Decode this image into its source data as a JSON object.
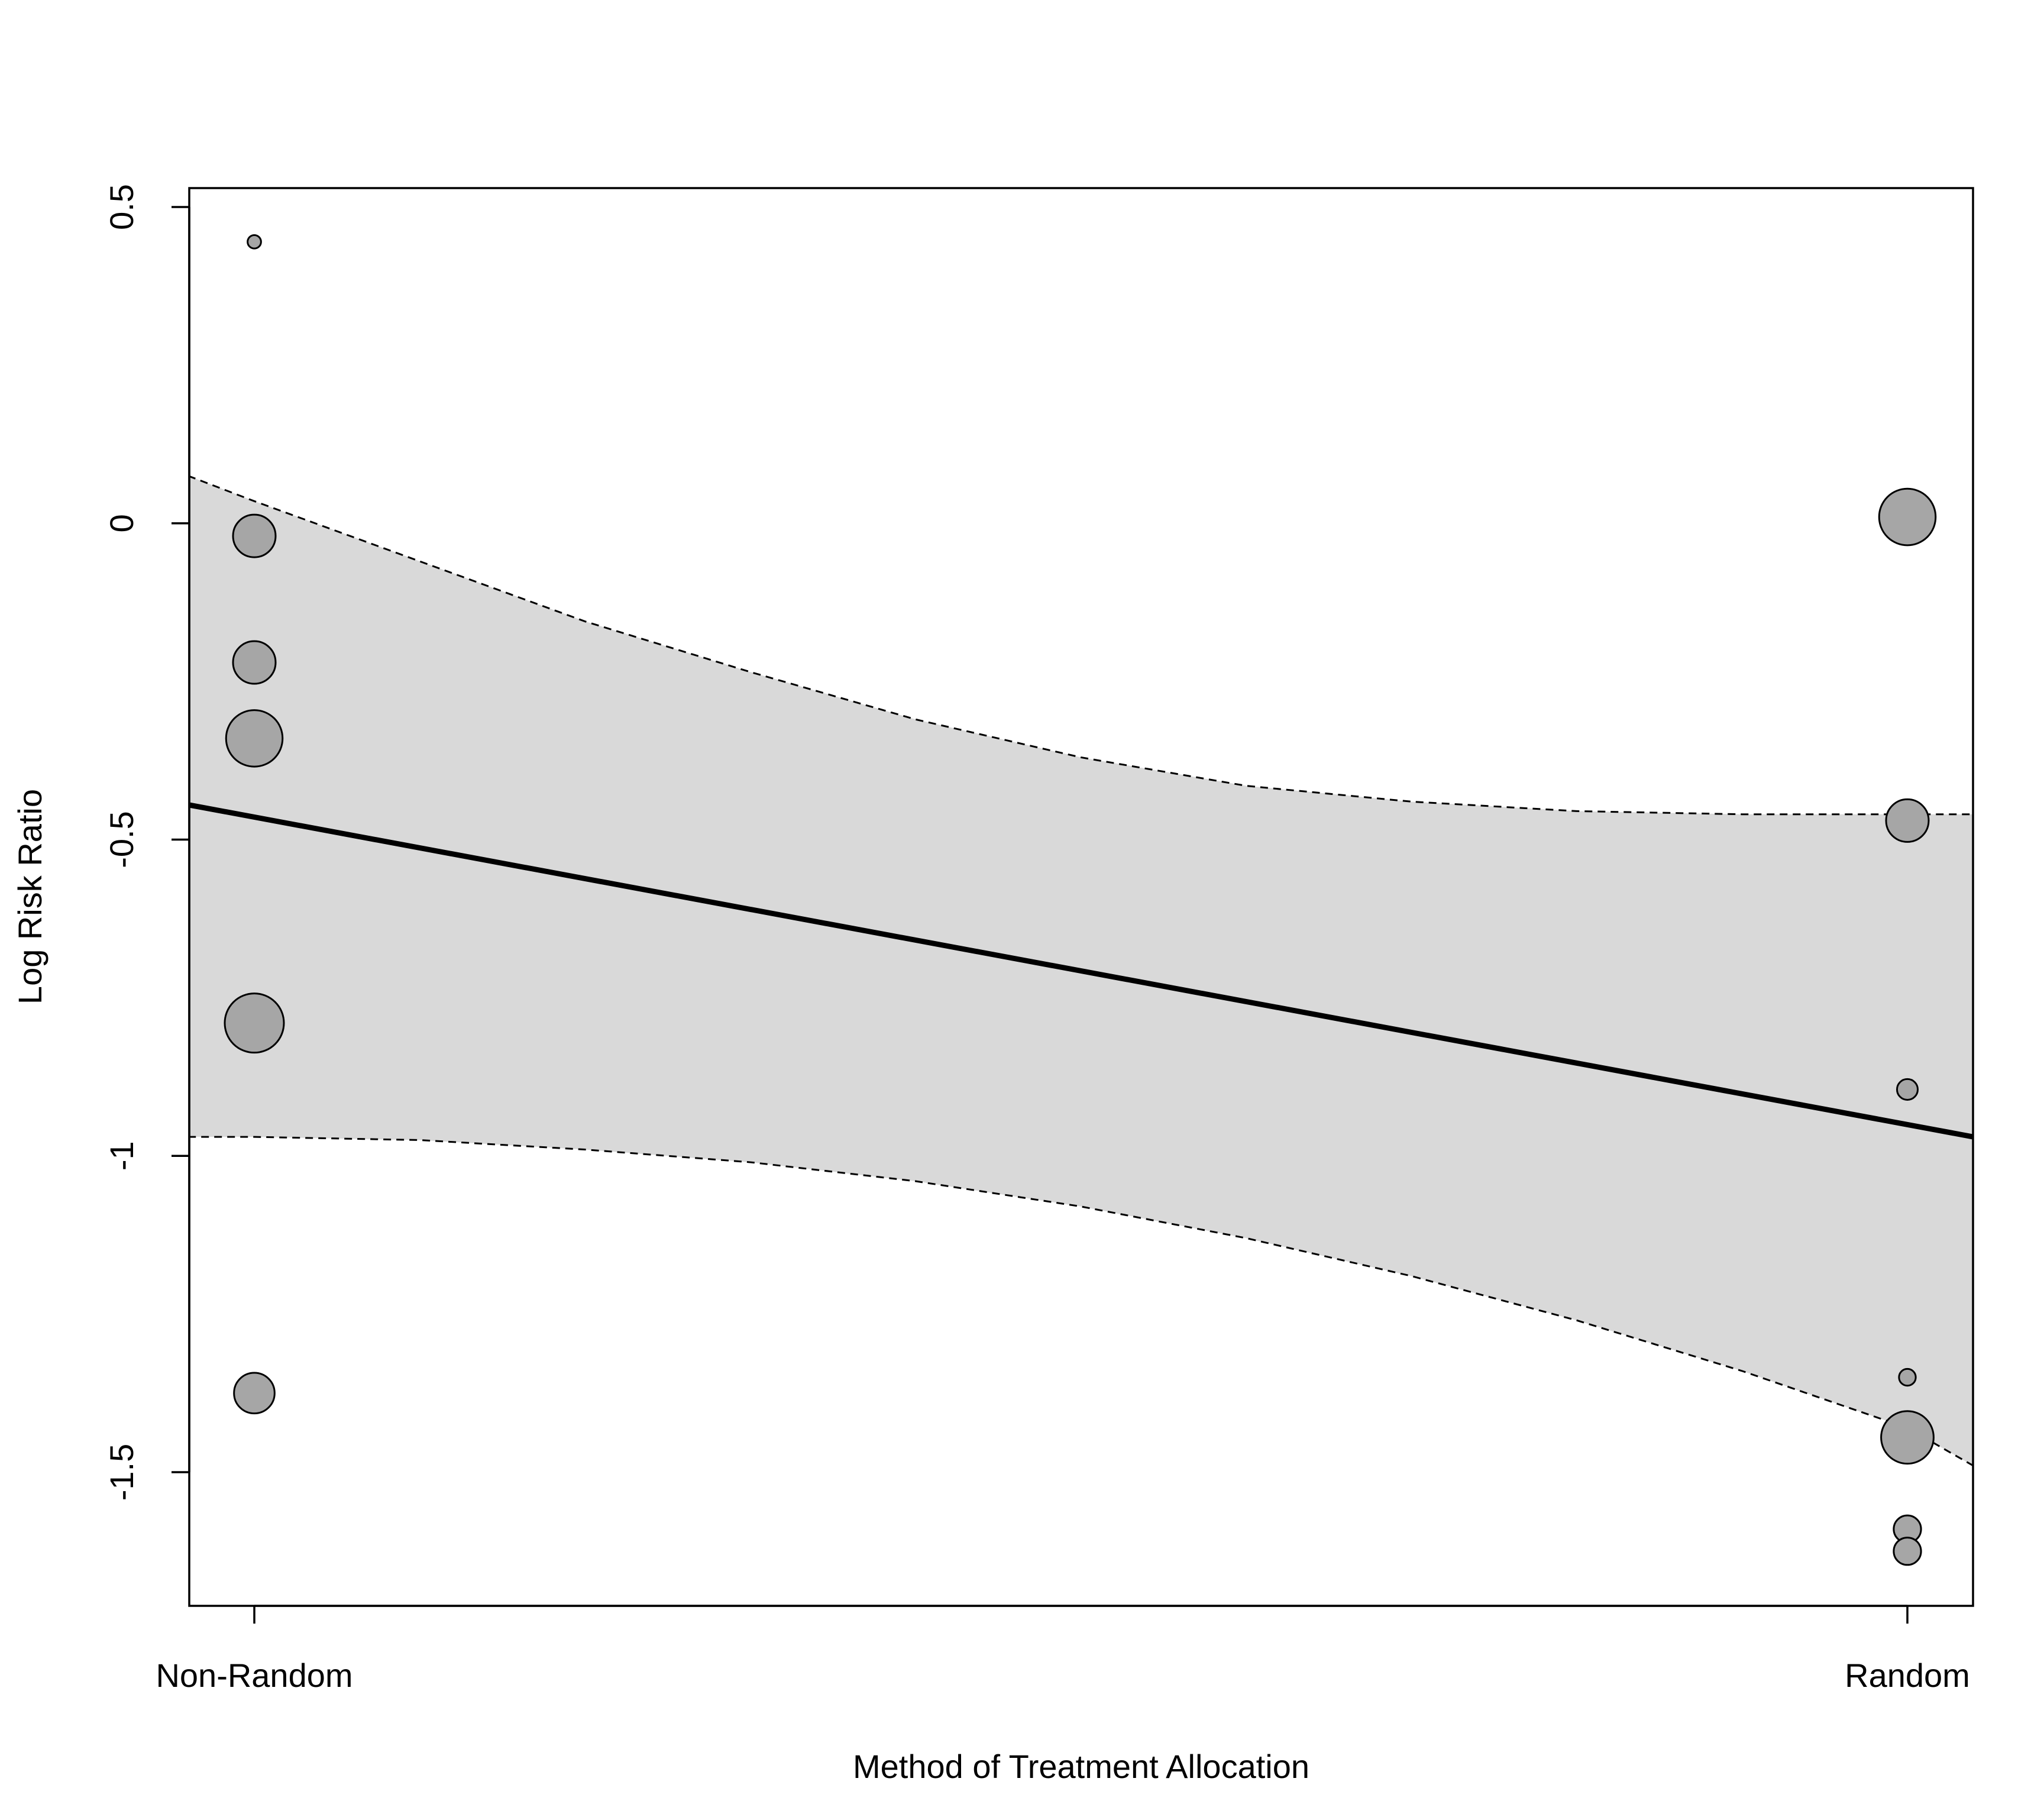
{
  "chart_data": {
    "type": "scatter",
    "title": "",
    "xlabel": "Method of Treatment Allocation",
    "ylabel": "Log Risk Ratio",
    "categories": [
      "Non-Random",
      "Random"
    ],
    "ylim": [
      -1.7,
      0.53
    ],
    "yticks": [
      0.5,
      0,
      -0.5,
      -1,
      -1.5
    ],
    "ytick_labels": [
      "0.5",
      "0",
      "-0.5",
      "-1",
      "-1.5"
    ],
    "grid": false,
    "points": [
      {
        "category": "Non-Random",
        "y": 0.445,
        "weight": 0.06
      },
      {
        "category": "Non-Random",
        "y": -0.02,
        "weight": 0.5
      },
      {
        "category": "Non-Random",
        "y": -0.22,
        "weight": 0.5
      },
      {
        "category": "Non-Random",
        "y": -0.34,
        "weight": 0.71
      },
      {
        "category": "Non-Random",
        "y": -0.79,
        "weight": 0.75
      },
      {
        "category": "Non-Random",
        "y": -1.375,
        "weight": 0.47
      },
      {
        "category": "Random",
        "y": 0.01,
        "weight": 0.71
      },
      {
        "category": "Random",
        "y": -0.47,
        "weight": 0.5
      },
      {
        "category": "Random",
        "y": -0.895,
        "weight": 0.17
      },
      {
        "category": "Random",
        "y": -1.35,
        "weight": 0.11
      },
      {
        "category": "Random",
        "y": -1.445,
        "weight": 0.65
      },
      {
        "category": "Random",
        "y": -1.59,
        "weight": 0.27
      },
      {
        "category": "Random",
        "y": -1.625,
        "weight": 0.27
      }
    ],
    "regression_line": {
      "x": [
        -0.04,
        1.04
      ],
      "y": [
        -0.445,
        -0.97
      ]
    },
    "confidence_band": {
      "x": [
        -0.04,
        0.0,
        0.1,
        0.2,
        0.3,
        0.4,
        0.5,
        0.6,
        0.7,
        0.8,
        0.9,
        1.0,
        1.04
      ],
      "upper": [
        0.075,
        0.035,
        -0.06,
        -0.155,
        -0.235,
        -0.31,
        -0.37,
        -0.415,
        -0.44,
        -0.455,
        -0.46,
        -0.46,
        -0.46
      ],
      "lower": [
        -0.97,
        -0.97,
        -0.975,
        -0.99,
        -1.01,
        -1.04,
        -1.08,
        -1.13,
        -1.19,
        -1.26,
        -1.34,
        -1.43,
        -1.49
      ]
    },
    "colors": {
      "band": "#d9d9d9",
      "point_fill": "#a6a6a6",
      "line": "#000000"
    }
  }
}
